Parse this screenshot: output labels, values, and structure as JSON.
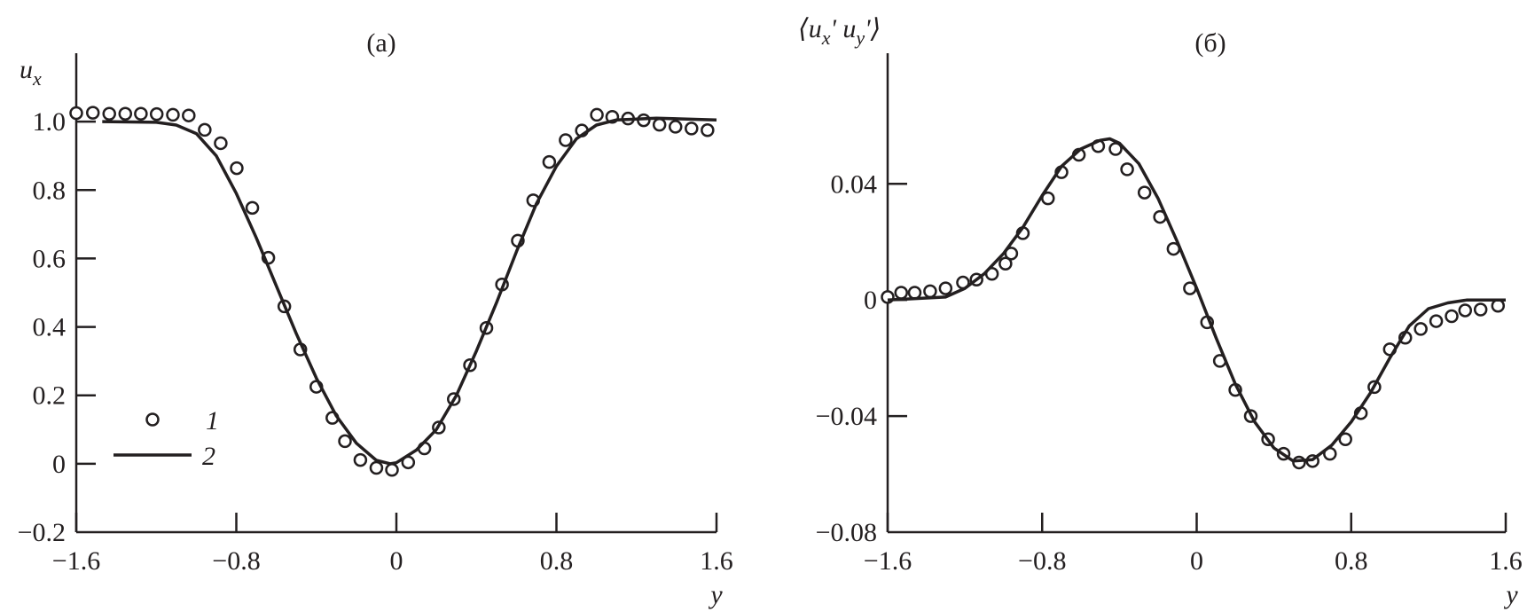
{
  "chart_data": [
    {
      "type": "scatter",
      "title": "(a)",
      "xlabel": "y",
      "ylabel": "u",
      "ylabel_sub": "x",
      "xlim": [
        -1.6,
        1.6
      ],
      "ylim": [
        -0.2,
        1.2
      ],
      "xticks": [
        -1.6,
        -0.8,
        0,
        0.8,
        1.6
      ],
      "xtick_labels": [
        "−1.6",
        "−0.8",
        "0",
        "0.8",
        "1.6"
      ],
      "yticks": [
        -0.2,
        0,
        0.2,
        0.4,
        0.6,
        0.8,
        1.0
      ],
      "ytick_labels": [
        "−0.2",
        "0",
        "0.2",
        "0.4",
        "0.6",
        "0.8",
        "1.0"
      ],
      "legend": {
        "placement": "bottom-left",
        "entries": [
          {
            "label": "1",
            "marker": "circle"
          },
          {
            "label": "2",
            "marker": "line"
          }
        ]
      },
      "series": [
        {
          "name": "1",
          "kind": "markers",
          "x": [
            -1.6,
            -1.517,
            -1.435,
            -1.355,
            -1.277,
            -1.198,
            -1.117,
            -1.038,
            -0.958,
            -0.878,
            -0.798,
            -0.72,
            -0.64,
            -0.56,
            -0.48,
            -0.4,
            -0.32,
            -0.257,
            -0.18,
            -0.1,
            -0.022,
            0.059,
            0.14,
            0.212,
            0.287,
            0.368,
            0.45,
            0.528,
            0.607,
            0.684,
            0.764,
            0.846,
            0.927,
            1.002,
            1.079,
            1.158,
            1.236,
            1.315,
            1.395,
            1.475,
            1.555
          ],
          "y": [
            1.025,
            1.026,
            1.023,
            1.023,
            1.023,
            1.022,
            1.02,
            1.018,
            0.976,
            0.937,
            0.864,
            0.748,
            0.602,
            0.46,
            0.334,
            0.225,
            0.134,
            0.066,
            0.011,
            -0.012,
            -0.018,
            0.004,
            0.045,
            0.106,
            0.189,
            0.288,
            0.397,
            0.524,
            0.652,
            0.77,
            0.882,
            0.946,
            0.974,
            1.02,
            1.014,
            1.009,
            1.004,
            0.991,
            0.985,
            0.98,
            0.975
          ]
        },
        {
          "name": "2",
          "kind": "line",
          "x": [
            -1.47,
            -1.2,
            -1.1,
            -1.0,
            -0.9,
            -0.8,
            -0.7,
            -0.6,
            -0.5,
            -0.4,
            -0.3,
            -0.2,
            -0.1,
            -0.03,
            0,
            0.1,
            0.2,
            0.3,
            0.4,
            0.5,
            0.6,
            0.7,
            0.8,
            0.9,
            1.0,
            1.1,
            1.3,
            1.6
          ],
          "y": [
            1.0,
            0.998,
            0.99,
            0.965,
            0.9,
            0.79,
            0.66,
            0.52,
            0.38,
            0.25,
            0.14,
            0.06,
            0.01,
            0.0,
            0.003,
            0.04,
            0.1,
            0.2,
            0.33,
            0.47,
            0.62,
            0.76,
            0.87,
            0.95,
            0.99,
            1.005,
            1.01,
            1.005
          ]
        }
      ]
    },
    {
      "type": "scatter",
      "title": "(б)",
      "xlabel": "y",
      "ylabel": "⟨u",
      "ylabel_sub1": "x",
      "ylabel_mid": "' u",
      "ylabel_sub2": "y",
      "ylabel_end": "'⟩",
      "xlim": [
        -1.6,
        1.6
      ],
      "ylim": [
        -0.08,
        0.085
      ],
      "xticks": [
        -1.6,
        -0.8,
        0,
        0.8,
        1.6
      ],
      "xtick_labels": [
        "−1.6",
        "−0.8",
        "0",
        "0.8",
        "1.6"
      ],
      "yticks": [
        -0.08,
        -0.04,
        0,
        0.04
      ],
      "ytick_labels": [
        "−0.08",
        "−0.04",
        "0",
        "0.04"
      ],
      "series": [
        {
          "name": "1",
          "kind": "markers",
          "x": [
            -1.6,
            -1.53,
            -1.46,
            -1.38,
            -1.3,
            -1.21,
            -1.14,
            -1.06,
            -0.99,
            -0.96,
            -0.9,
            -0.77,
            -0.7,
            -0.61,
            -0.51,
            -0.42,
            -0.36,
            -0.27,
            -0.19,
            -0.12,
            -0.035,
            0.054,
            0.12,
            0.2,
            0.28,
            0.37,
            0.45,
            0.53,
            0.6,
            0.69,
            0.77,
            0.85,
            0.92,
            1.0,
            1.08,
            1.16,
            1.24,
            1.32,
            1.39,
            1.47,
            1.56
          ],
          "y": [
            0.001,
            0.0025,
            0.0025,
            0.003,
            0.004,
            0.006,
            0.007,
            0.009,
            0.0125,
            0.016,
            0.023,
            0.035,
            0.044,
            0.05,
            0.053,
            0.052,
            0.045,
            0.037,
            0.0286,
            0.0176,
            0.004,
            -0.0077,
            -0.021,
            -0.031,
            -0.04,
            -0.048,
            -0.053,
            -0.056,
            -0.0555,
            -0.053,
            -0.048,
            -0.039,
            -0.03,
            -0.017,
            -0.013,
            -0.01,
            -0.0073,
            -0.0056,
            -0.0036,
            -0.0033,
            -0.002
          ]
        },
        {
          "name": "2",
          "kind": "line",
          "x": [
            -1.6,
            -1.3,
            -1.2,
            -1.1,
            -1.0,
            -0.9,
            -0.8,
            -0.7,
            -0.6,
            -0.5,
            -0.45,
            -0.4,
            -0.3,
            -0.2,
            -0.1,
            0,
            0.1,
            0.2,
            0.3,
            0.4,
            0.5,
            0.6,
            0.7,
            0.8,
            0.9,
            1.0,
            1.1,
            1.2,
            1.3,
            1.4,
            1.6
          ],
          "y": [
            0,
            0.001,
            0.004,
            0.009,
            0.016,
            0.025,
            0.036,
            0.046,
            0.052,
            0.055,
            0.0555,
            0.054,
            0.047,
            0.035,
            0.02,
            0.004,
            -0.013,
            -0.029,
            -0.042,
            -0.051,
            -0.0555,
            -0.055,
            -0.05,
            -0.042,
            -0.032,
            -0.02,
            -0.009,
            -0.003,
            -0.001,
            0,
            0
          ]
        }
      ]
    }
  ]
}
